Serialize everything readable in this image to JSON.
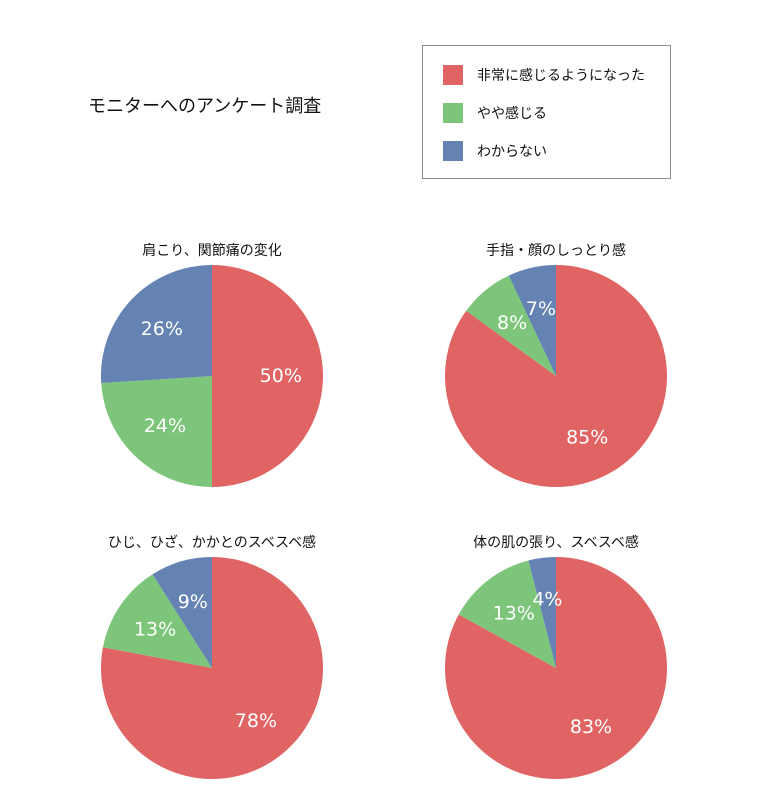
{
  "page": {
    "title": "モニターへのアンケート調査"
  },
  "legend": {
    "items": [
      {
        "label": "非常に感じるようになった",
        "color": "#e06464"
      },
      {
        "label": "やや感じる",
        "color": "#7dc57a"
      },
      {
        "label": "わからない",
        "color": "#6483b3"
      }
    ]
  },
  "chart_data": [
    {
      "type": "pie",
      "title": "肩こり、関節痛の変化",
      "categories": [
        "非常に感じるようになった",
        "やや感じる",
        "わからない"
      ],
      "values": [
        50,
        24,
        26
      ],
      "labels": [
        "50%",
        "24%",
        "26%"
      ],
      "colors": [
        "#e06464",
        "#7dc57a",
        "#6483b3"
      ]
    },
    {
      "type": "pie",
      "title": "手指・顔のしっとり感",
      "categories": [
        "非常に感じるようになった",
        "やや感じる",
        "わからない"
      ],
      "values": [
        85,
        8,
        7
      ],
      "labels": [
        "85%",
        "8%",
        "7%"
      ],
      "colors": [
        "#e06464",
        "#7dc57a",
        "#6483b3"
      ]
    },
    {
      "type": "pie",
      "title": "ひじ、ひざ、かかとのスベスベ感",
      "categories": [
        "非常に感じるようになった",
        "やや感じる",
        "わからない"
      ],
      "values": [
        78,
        13,
        9
      ],
      "labels": [
        "78%",
        "13%",
        "9%"
      ],
      "colors": [
        "#e06464",
        "#7dc57a",
        "#6483b3"
      ]
    },
    {
      "type": "pie",
      "title": "体の肌の張り、スベスベ感",
      "categories": [
        "非常に感じるようになった",
        "やや感じる",
        "わからない"
      ],
      "values": [
        83,
        13,
        4
      ],
      "labels": [
        "83%",
        "13%",
        "4%"
      ],
      "colors": [
        "#e06464",
        "#7dc57a",
        "#6483b3"
      ]
    }
  ]
}
